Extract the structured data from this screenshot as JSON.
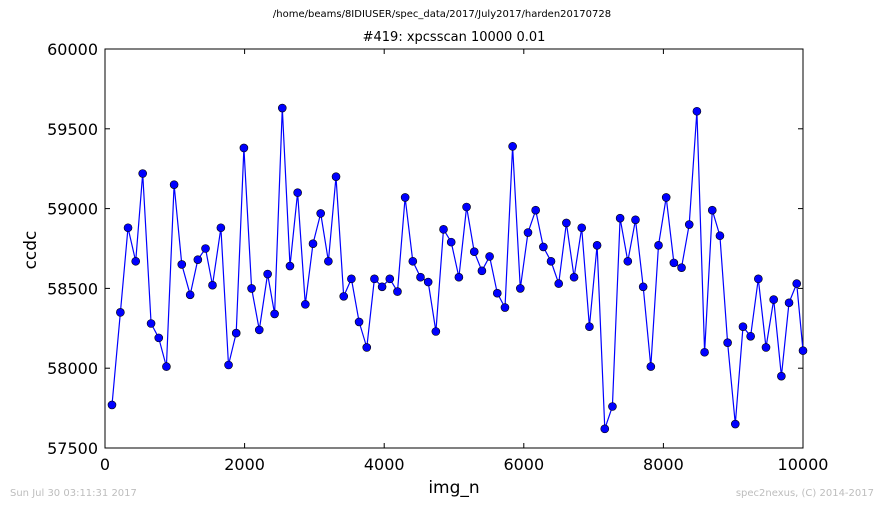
{
  "header": {
    "file_path": "/home/beams/8IDIUSER/spec_data/2017/July2017/harden20170728"
  },
  "footer": {
    "timestamp": "Sun Jul 30 03:11:31 2017",
    "credit": "spec2nexus, (C) 2014-2017"
  },
  "colors": {
    "series": "#0000ff",
    "marker_fill": "#0000ff",
    "footer_text": "#bdbdbd"
  },
  "chart_data": {
    "type": "line",
    "title": "#419: xpcsscan 10000 0.01",
    "xlabel": "img_n",
    "ylabel": "ccdc",
    "xlim": [
      0,
      10000
    ],
    "ylim": [
      57500,
      60000
    ],
    "xticks": [
      0,
      2000,
      4000,
      6000,
      8000,
      10000
    ],
    "xtick_labels": [
      "0",
      "2000",
      "4000",
      "6000",
      "8000",
      "10000"
    ],
    "yticks": [
      57500,
      58000,
      58500,
      59000,
      59500,
      60000
    ],
    "ytick_labels": [
      "57500",
      "58000",
      "58500",
      "59000",
      "59500",
      "60000"
    ],
    "grid": false,
    "legend": "none",
    "series": [
      {
        "marker": "circle",
        "x": [
          100,
          220,
          330,
          440,
          540,
          660,
          770,
          880,
          990,
          1100,
          1220,
          1330,
          1440,
          1540,
          1660,
          1770,
          1880,
          1990,
          2100,
          2210,
          2330,
          2430,
          2540,
          2650,
          2760,
          2870,
          2980,
          3090,
          3200,
          3310,
          3420,
          3530,
          3640,
          3750,
          3860,
          3970,
          4080,
          4190,
          4300,
          4410,
          4520,
          4630,
          4740,
          4850,
          4960,
          5070,
          5180,
          5290,
          5400,
          5510,
          5620,
          5730,
          5840,
          5950,
          6060,
          6170,
          6280,
          6390,
          6500,
          6610,
          6720,
          6830,
          6940,
          7050,
          7160,
          7270,
          7380,
          7490,
          7600,
          7710,
          7820,
          7930,
          8040,
          8150,
          8260,
          8370,
          8480,
          8590,
          8700,
          8810,
          8920,
          9030,
          9140,
          9250,
          9360,
          9470,
          9580,
          9690,
          9800,
          9910,
          10000
        ],
        "y": [
          57770,
          58350,
          58880,
          58670,
          59220,
          58280,
          58190,
          58010,
          59150,
          58650,
          58460,
          58680,
          58750,
          58520,
          58880,
          58020,
          58220,
          59380,
          58500,
          58240,
          58590,
          58340,
          59630,
          58640,
          59100,
          58400,
          58780,
          58970,
          58670,
          59200,
          58450,
          58560,
          58290,
          58130,
          58560,
          58510,
          58560,
          58480,
          59070,
          58670,
          58570,
          58540,
          58230,
          58870,
          58790,
          58570,
          59010,
          58730,
          58610,
          58700,
          58470,
          58380,
          59390,
          58500,
          58850,
          58990,
          58760,
          58670,
          58530,
          58910,
          58570,
          58880,
          58260,
          58770,
          57620,
          57760,
          58940,
          58670,
          58930,
          58510,
          58010,
          58770,
          59070,
          58660,
          58630,
          58900,
          59610,
          58100,
          58990,
          58830,
          58160,
          57650,
          58260,
          58200,
          58560,
          58130,
          58430,
          57950,
          58410,
          58530,
          58110
        ]
      }
    ]
  }
}
